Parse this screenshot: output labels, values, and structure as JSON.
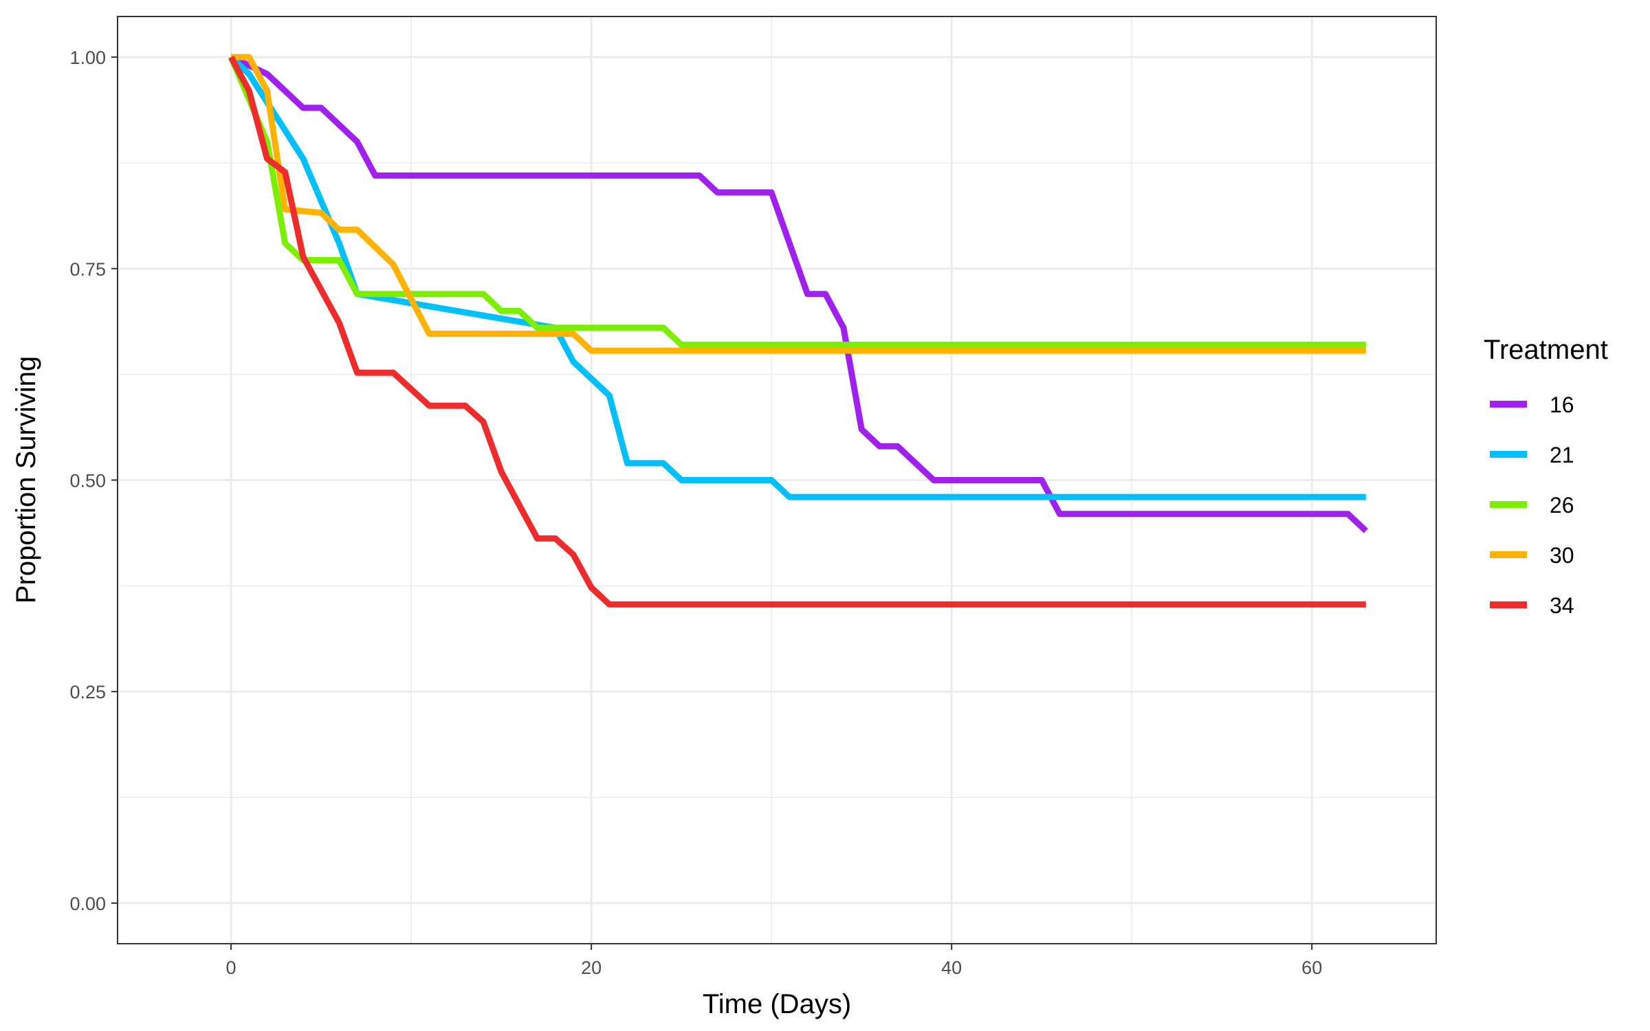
{
  "chart_data": {
    "type": "line",
    "step": true,
    "xlabel": "Time (Days)",
    "ylabel": "Proportion Surviving",
    "xlim": [
      -6.3,
      66.9
    ],
    "ylim": [
      -0.048,
      1.048
    ],
    "x_ticks": [
      0,
      20,
      40,
      60
    ],
    "x_tick_labels": [
      "0",
      "20",
      "40",
      "60"
    ],
    "y_ticks": [
      0,
      0.25,
      0.5,
      0.75,
      1.0
    ],
    "y_tick_labels": [
      "0.00",
      "0.25",
      "0.50",
      "0.75",
      "1.00"
    ],
    "grid": true,
    "legend": {
      "title": "Treatment",
      "position": "right"
    },
    "series": [
      {
        "name": "16",
        "color": "#A020F0",
        "x": [
          0,
          2,
          4,
          5,
          7,
          8,
          26,
          27,
          30,
          32,
          33,
          34,
          35,
          36,
          37,
          39,
          45,
          46,
          62,
          63
        ],
        "y": [
          1.0,
          0.98,
          0.94,
          0.94,
          0.9,
          0.86,
          0.86,
          0.84,
          0.84,
          0.72,
          0.72,
          0.68,
          0.56,
          0.54,
          0.54,
          0.5,
          0.5,
          0.46,
          0.46,
          0.44
        ]
      },
      {
        "name": "21",
        "color": "#00BFFF",
        "x": [
          0,
          1,
          4,
          6,
          7,
          18,
          19,
          21,
          22,
          24,
          25,
          30,
          31,
          63
        ],
        "y": [
          1.0,
          0.98,
          0.88,
          0.78,
          0.72,
          0.68,
          0.64,
          0.6,
          0.52,
          0.52,
          0.5,
          0.5,
          0.48,
          0.48
        ]
      },
      {
        "name": "26",
        "color": "#7CEE00",
        "x": [
          0,
          2,
          3,
          4,
          6,
          7,
          14,
          15,
          16,
          17,
          24,
          25,
          63
        ],
        "y": [
          1.0,
          0.9,
          0.78,
          0.76,
          0.76,
          0.72,
          0.72,
          0.7,
          0.7,
          0.68,
          0.68,
          0.66,
          0.66
        ]
      },
      {
        "name": "30",
        "color": "#FFB300",
        "x": [
          0,
          1,
          2,
          3,
          5,
          6,
          7,
          9,
          11,
          19,
          20,
          63
        ],
        "y": [
          1.0,
          1.0,
          0.96,
          0.82,
          0.816,
          0.796,
          0.796,
          0.755,
          0.673,
          0.673,
          0.653,
          0.653
        ]
      },
      {
        "name": "34",
        "color": "#EE2C2C",
        "x": [
          0,
          1,
          2,
          3,
          4,
          6,
          7,
          9,
          11,
          13,
          14,
          15,
          17,
          18,
          19,
          20,
          21,
          63
        ],
        "y": [
          1.0,
          0.96,
          0.88,
          0.864,
          0.764,
          0.686,
          0.627,
          0.627,
          0.588,
          0.588,
          0.569,
          0.51,
          0.431,
          0.431,
          0.412,
          0.373,
          0.353,
          0.353
        ]
      }
    ]
  }
}
